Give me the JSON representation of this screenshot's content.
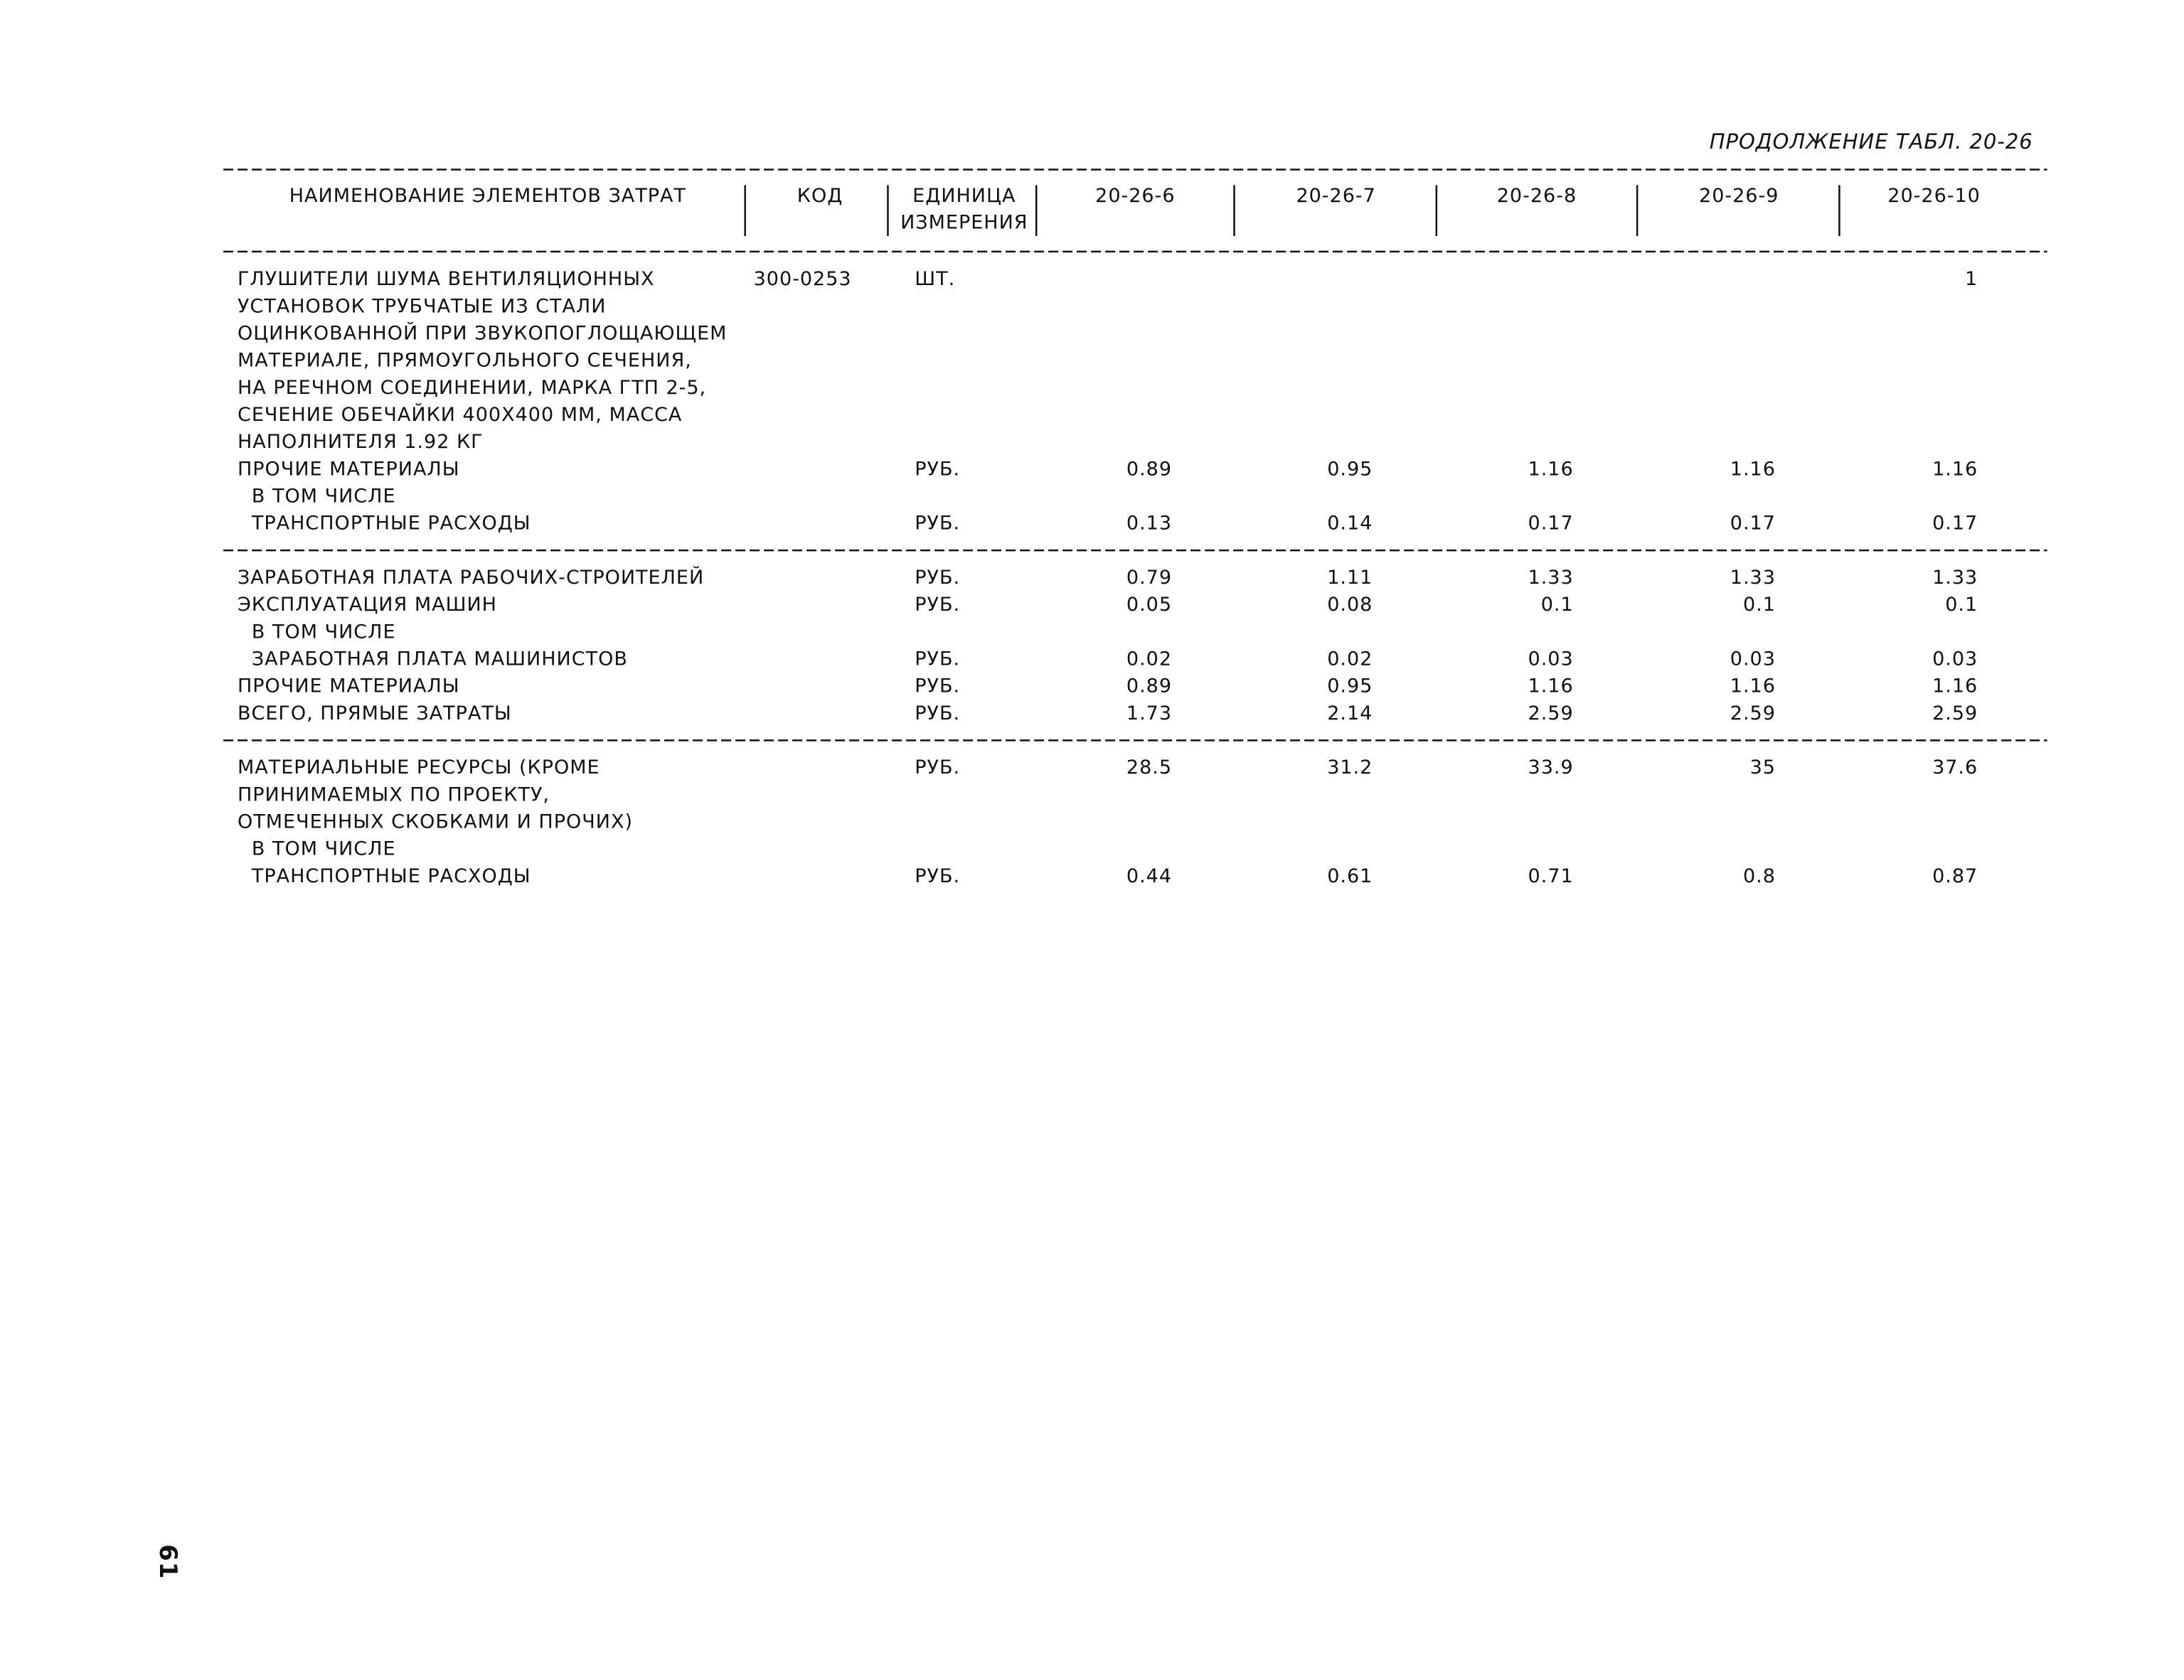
{
  "caption": "ПРОДОЛЖЕНИЕ ТАБЛ. 20-26",
  "header": {
    "name": "НАИМЕНОВАНИЕ ЭЛЕМЕНТОВ ЗАТРАТ",
    "code": "КОД",
    "unit": [
      "ЕДИНИЦА",
      "ИЗМЕРЕНИЯ"
    ],
    "columns": [
      "20-26-6",
      "20-26-7",
      "20-26-8",
      "20-26-9",
      "20-26-10"
    ]
  },
  "groups": [
    {
      "rows": [
        {
          "name": [
            "ГЛУШИТЕЛИ ШУМА ВЕНТИЛЯЦИОННЫХ",
            "УСТАНОВОК ТРУБЧАТЫЕ ИЗ СТАЛИ",
            "ОЦИНКОВАННОЙ ПРИ ЗВУКОПОГЛОЩАЮЩЕМ",
            "МАТЕРИАЛЕ, ПРЯМОУГОЛЬНОГО СЕЧЕНИЯ,",
            "НА РЕЕЧНОМ СОЕДИНЕНИИ, МАРКА ГТП 2-5,",
            "СЕЧЕНИЕ ОБЕЧАЙКИ 400Х400 ММ, МАССА",
            "НАПОЛНИТЕЛЯ 1.92 КГ"
          ],
          "code": "300-0253",
          "unit": "ШТ.",
          "values": [
            null,
            null,
            null,
            null,
            "1"
          ]
        },
        {
          "name": [
            "ПРОЧИЕ МАТЕРИАЛЫ"
          ],
          "unit": "РУБ.",
          "values": [
            "0.89",
            "0.95",
            "1.16",
            "1.16",
            "1.16"
          ]
        },
        {
          "name": [
            "В ТОМ ЧИСЛЕ"
          ],
          "indent": true
        },
        {
          "name": [
            "ТРАНСПОРТНЫЕ РАСХОДЫ"
          ],
          "indent": true,
          "unit": "РУБ.",
          "values": [
            "0.13",
            "0.14",
            "0.17",
            "0.17",
            "0.17"
          ]
        }
      ]
    },
    {
      "rows": [
        {
          "name": [
            "ЗАРАБОТНАЯ ПЛАТА РАБОЧИХ-СТРОИТЕЛЕЙ"
          ],
          "unit": "РУБ.",
          "values": [
            "0.79",
            "1.11",
            "1.33",
            "1.33",
            "1.33"
          ]
        },
        {
          "name": [
            "ЭКСПЛУАТАЦИЯ МАШИН"
          ],
          "unit": "РУБ.",
          "values": [
            "0.05",
            "0.08",
            "0.1",
            "0.1",
            "0.1"
          ]
        },
        {
          "name": [
            "В ТОМ ЧИСЛЕ"
          ],
          "indent": true
        },
        {
          "name": [
            "ЗАРАБОТНАЯ ПЛАТА МАШИНИСТОВ"
          ],
          "indent": true,
          "unit": "РУБ.",
          "values": [
            "0.02",
            "0.02",
            "0.03",
            "0.03",
            "0.03"
          ]
        },
        {
          "name": [
            "ПРОЧИЕ МАТЕРИАЛЫ"
          ],
          "unit": "РУБ.",
          "values": [
            "0.89",
            "0.95",
            "1.16",
            "1.16",
            "1.16"
          ]
        },
        {
          "name": [
            "ВСЕГО, ПРЯМЫЕ ЗАТРАТЫ"
          ],
          "unit": "РУБ.",
          "values": [
            "1.73",
            "2.14",
            "2.59",
            "2.59",
            "2.59"
          ]
        }
      ]
    },
    {
      "rows": [
        {
          "name": [
            "МАТЕРИАЛЬНЫЕ РЕСУРСЫ (КРОМЕ",
            "ПРИНИМАЕМЫХ ПО ПРОЕКТУ,",
            "ОТМЕЧЕННЫХ СКОБКАМИ И ПРОЧИХ)"
          ],
          "unit": "РУБ.",
          "values": [
            "28.5",
            "31.2",
            "33.9",
            "35",
            "37.6"
          ]
        },
        {
          "name": [
            "В ТОМ ЧИСЛЕ"
          ],
          "indent": true
        },
        {
          "name": [
            "ТРАНСПОРТНЫЕ РАСХОДЫ"
          ],
          "indent": true,
          "unit": "РУБ.",
          "values": [
            "0.44",
            "0.61",
            "0.71",
            "0.8",
            "0.87"
          ]
        }
      ]
    }
  ],
  "page_number": "61"
}
